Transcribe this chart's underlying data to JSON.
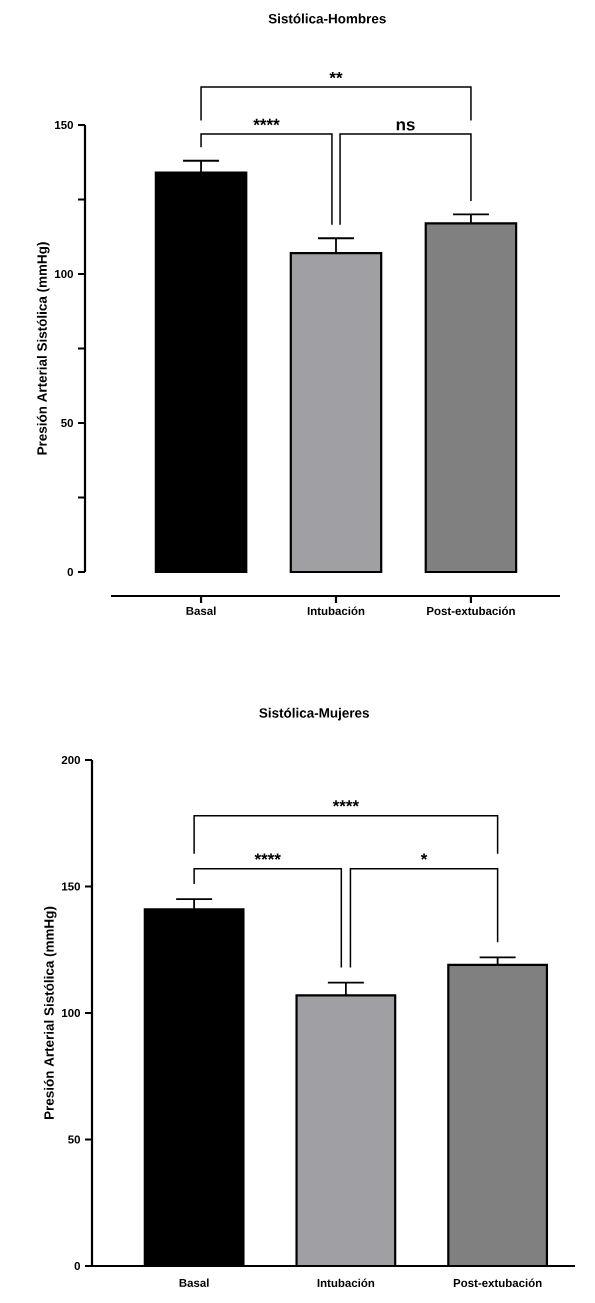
{
  "chart_data": [
    {
      "type": "bar",
      "title": "Sistólica-Hombres",
      "ylabel": "Presión Arterial Sistólica (mmHg)",
      "categories": [
        "Basal",
        "Intubación",
        "Post-extubación"
      ],
      "values": [
        134,
        107,
        117
      ],
      "colors": [
        "#000000",
        "#a0a0a4",
        "#808080"
      ],
      "errors": [
        [
          134,
          138
        ],
        [
          107,
          112
        ],
        [
          117,
          120
        ]
      ],
      "ylim": [
        0,
        150
      ],
      "yticks": [
        0,
        50,
        100,
        150
      ],
      "annotations": [
        "****",
        "ns",
        "**"
      ]
    },
    {
      "type": "bar",
      "title": "Sistólica-Mujeres",
      "ylabel": "Presión Arterial Sistólica (mmHg)",
      "categories": [
        "Basal",
        "Intubación",
        "Post-extubación"
      ],
      "values": [
        141,
        107,
        119
      ],
      "colors": [
        "#000000",
        "#a0a0a4",
        "#808080"
      ],
      "errors": [
        [
          141,
          145
        ],
        [
          107,
          112
        ],
        [
          119,
          122
        ]
      ],
      "ylim": [
        0,
        200
      ],
      "yticks": [
        0,
        50,
        100,
        150,
        200
      ],
      "annotations": [
        "****",
        "*",
        "****"
      ]
    }
  ]
}
